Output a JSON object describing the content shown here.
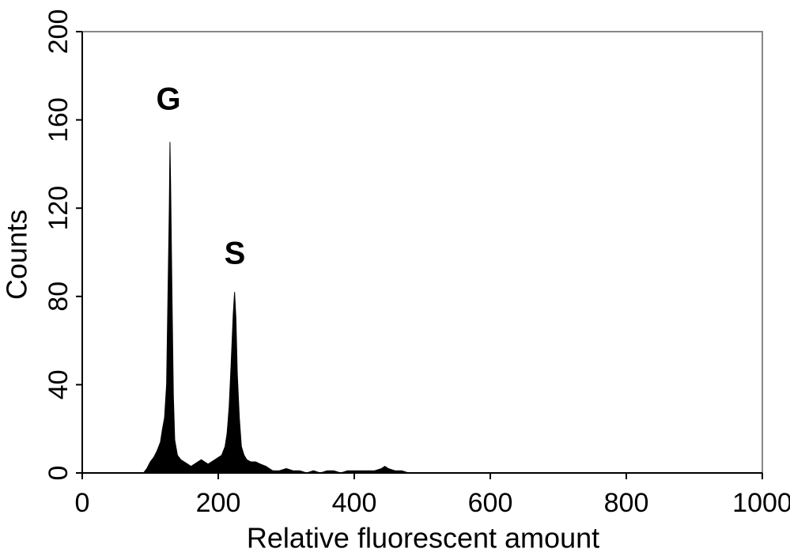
{
  "chart_data": {
    "type": "area",
    "xlabel": "Relative fluorescent amount",
    "ylabel": "Counts",
    "annotations": [
      "G",
      "S"
    ],
    "color": "#000000",
    "x": [
      0,
      50,
      90,
      95,
      100,
      105,
      110,
      115,
      118,
      121,
      124,
      126,
      128,
      129,
      130,
      132,
      134,
      136,
      140,
      145,
      150,
      155,
      160,
      165,
      170,
      175,
      180,
      185,
      190,
      195,
      200,
      205,
      210,
      213,
      216,
      219,
      222,
      224,
      226,
      228,
      231,
      234,
      238,
      242,
      248,
      255,
      262,
      270,
      280,
      290,
      300,
      310,
      320,
      330,
      340,
      350,
      360,
      370,
      380,
      390,
      400,
      410,
      420,
      430,
      440,
      445,
      450,
      460,
      470,
      480,
      500,
      600,
      700,
      800,
      900,
      1000
    ],
    "values": [
      0,
      0,
      0,
      2,
      5,
      7,
      10,
      14,
      20,
      25,
      40,
      80,
      120,
      150,
      130,
      80,
      35,
      15,
      8,
      6,
      5,
      4,
      3,
      4,
      5,
      6,
      5,
      4,
      5,
      6,
      7,
      8,
      12,
      18,
      30,
      50,
      72,
      82,
      70,
      45,
      25,
      12,
      8,
      6,
      5,
      5,
      4,
      3,
      1,
      1,
      2,
      1,
      1,
      0,
      1,
      0,
      1,
      1,
      0,
      1,
      1,
      1,
      1,
      1,
      2,
      3,
      2,
      1,
      1,
      0,
      0,
      0,
      0,
      0,
      0,
      0
    ],
    "xlim": [
      0,
      1000
    ],
    "xticks": [
      0,
      200,
      400,
      600,
      800,
      1000
    ],
    "ylim": [
      0,
      200
    ],
    "yticks": [
      0,
      40,
      80,
      120,
      160,
      200
    ]
  }
}
